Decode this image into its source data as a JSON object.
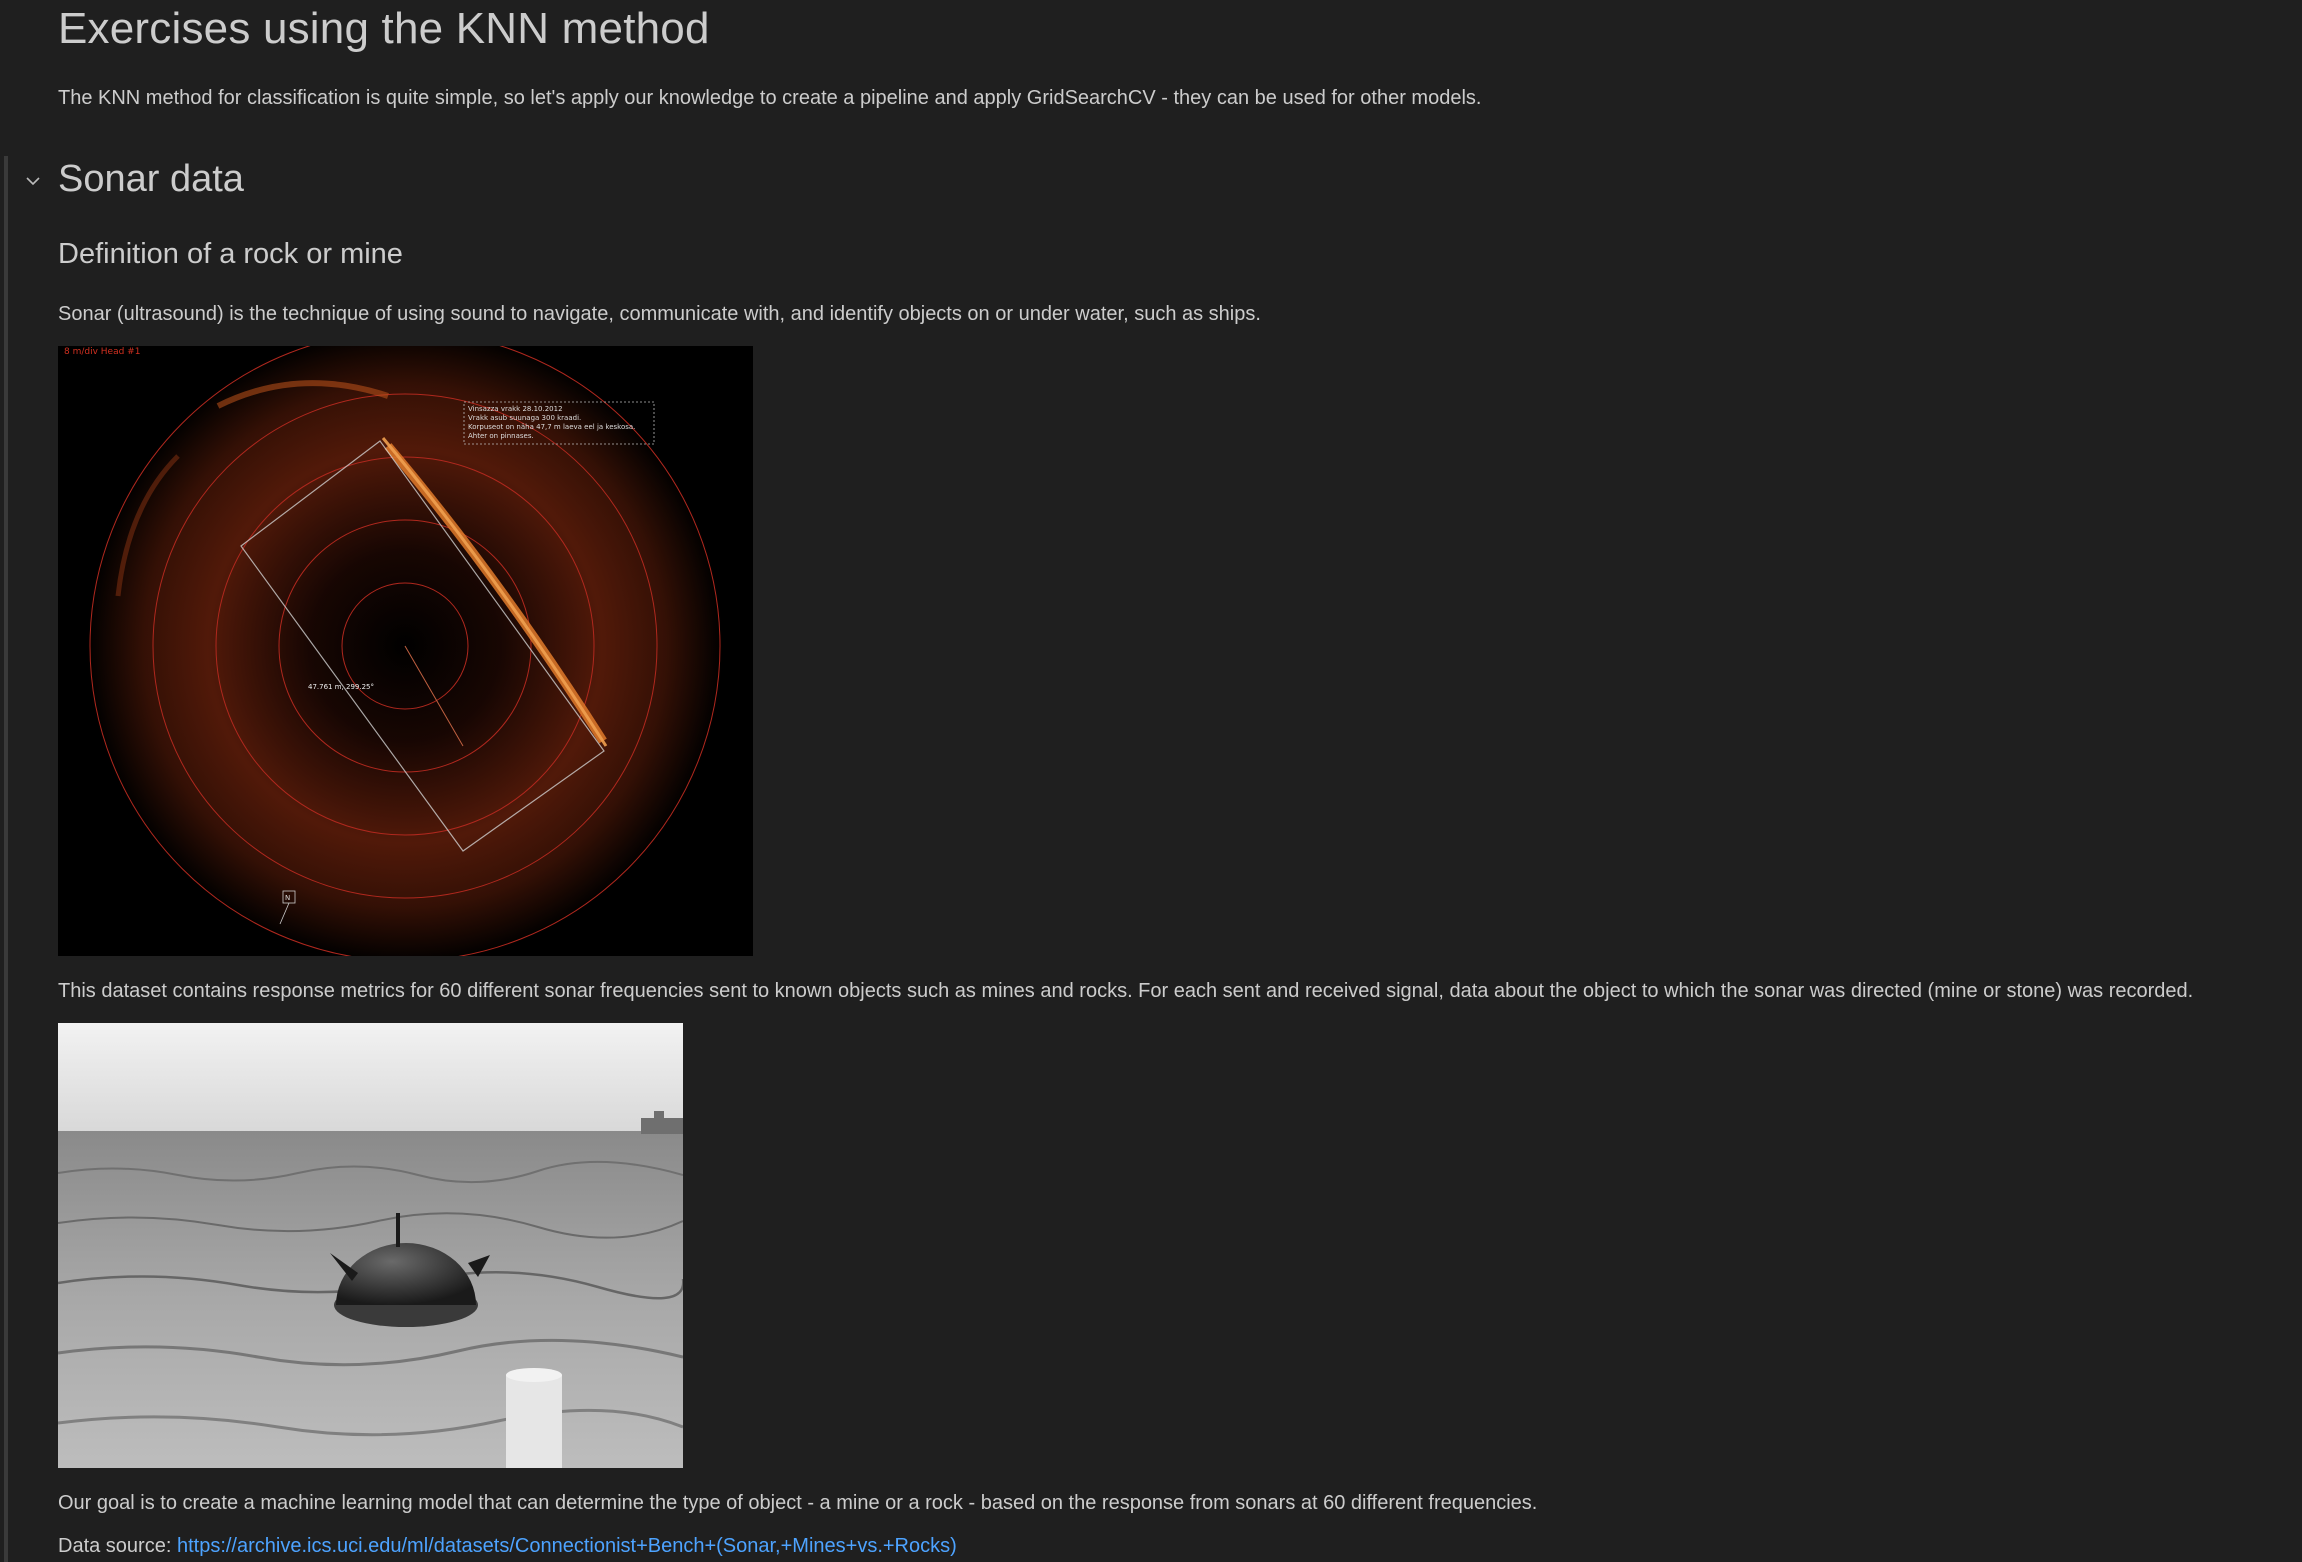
{
  "notebook": {
    "title": "Exercises using the KNN method",
    "intro": "The KNN method for classification is quite simple, so let's apply our knowledge to create a pipeline and apply GridSearchCV - they can be used for other models.",
    "section_title": "Sonar data",
    "subsection_title": "Definition of a rock or mine",
    "paragraph_sonar": "Sonar (ultrasound) is the technique of using sound to navigate, communicate with, and identify objects on or under water, such as ships.",
    "paragraph_dataset": "This dataset contains response metrics for 60 different sonar frequencies sent to known objects such as mines and rocks. For each sent and received signal, data about the object to which the sonar was directed (mine or stone) was recorded.",
    "paragraph_goal": "Our goal is to create a machine learning model that can determine the type of object - a mine or a rock - based on the response from sonars at 60 different frequencies.",
    "data_source_label": "Data source: ",
    "data_source_url": "https://archive.ics.uci.edu/ml/datasets/Connectionist+Bench+(Sonar,+Mines+vs.+Rocks)"
  },
  "sonar_image": {
    "header_label": "8 m/div Head #1",
    "annotation_lines": [
      "Vinsazza vrakk 28.10.2012",
      "Vrakk asub suunaga 300 kraadi.",
      "Korpuseot on näha 47,7 m laeva eel ja keskosa.",
      "Ahter on pinnases."
    ],
    "measure_label": "47.761 m, 299.25°",
    "compass_label": "N"
  },
  "colors": {
    "background": "#1f1f1f",
    "text": "#cccccc",
    "link": "#4da3ff",
    "sonar_ring": "#b0281e",
    "sonar_echo": "#e07a2a"
  }
}
